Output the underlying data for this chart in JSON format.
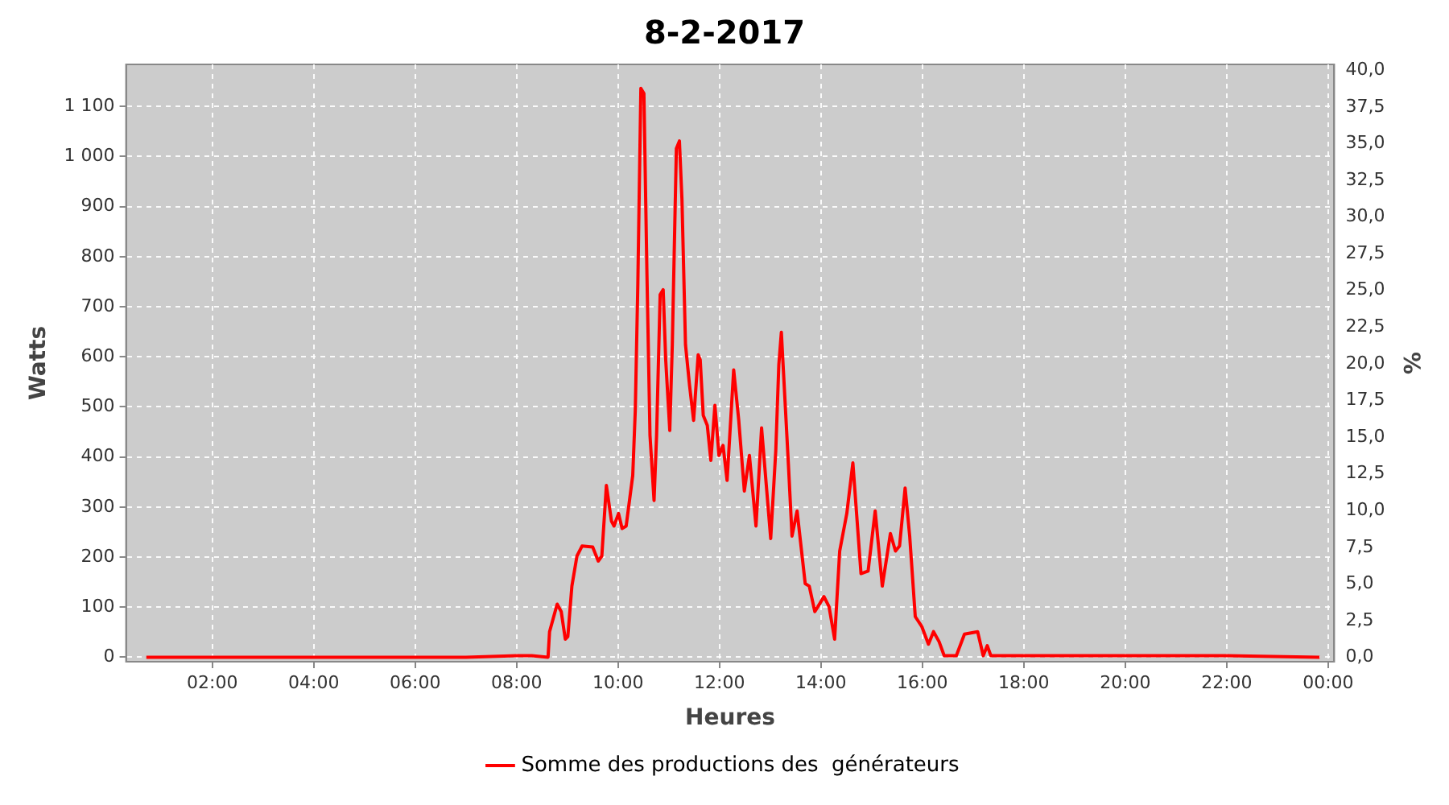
{
  "chart_data": {
    "type": "line",
    "title": "8-2-2017",
    "xlabel": "Heures",
    "ylabel": "Watts",
    "y2label": "%",
    "x": [
      0.7,
      2,
      4,
      6,
      7,
      8,
      8.3,
      8.62,
      8.65,
      8.8,
      8.88,
      8.96,
      9.01,
      9.09,
      9.19,
      9.29,
      9.5,
      9.61,
      9.68,
      9.77,
      9.87,
      9.92,
      10.01,
      10.08,
      10.16,
      10.29,
      10.34,
      10.39,
      10.45,
      10.51,
      10.57,
      10.63,
      10.71,
      10.76,
      10.83,
      10.89,
      10.94,
      11.02,
      11.07,
      11.15,
      11.21,
      11.26,
      11.33,
      11.41,
      11.49,
      11.58,
      11.62,
      11.68,
      11.76,
      11.83,
      11.91,
      11.99,
      12.07,
      12.15,
      12.28,
      12.38,
      12.49,
      12.59,
      12.72,
      12.83,
      13.01,
      13.11,
      13.17,
      13.22,
      13.36,
      13.43,
      13.53,
      13.69,
      13.77,
      13.88,
      14.06,
      14.16,
      14.27,
      14.37,
      14.51,
      14.63,
      14.79,
      14.93,
      15.07,
      15.21,
      15.37,
      15.47,
      15.55,
      15.66,
      15.75,
      15.86,
      15.99,
      16.12,
      16.22,
      16.33,
      16.43,
      16.67,
      16.83,
      17.09,
      17.2,
      17.28,
      17.35,
      18,
      20,
      22,
      23.83
    ],
    "series": [
      {
        "name": "Somme des productions des  générateurs",
        "color": "#ff0000",
        "values": [
          0,
          0,
          0,
          0,
          0,
          3,
          3,
          0,
          51,
          106,
          91,
          36,
          41,
          142,
          202,
          222,
          220,
          192,
          202,
          343,
          272,
          262,
          287,
          257,
          262,
          363,
          493,
          744,
          1136,
          1126,
          765,
          443,
          313,
          443,
          724,
          734,
          594,
          453,
          624,
          1016,
          1031,
          915,
          624,
          543,
          473,
          604,
          594,
          483,
          463,
          393,
          503,
          403,
          423,
          353,
          574,
          473,
          332,
          403,
          262,
          458,
          237,
          413,
          584,
          649,
          383,
          242,
          292,
          147,
          142,
          91,
          121,
          101,
          36,
          212,
          287,
          388,
          167,
          172,
          292,
          142,
          247,
          212,
          222,
          338,
          242,
          81,
          61,
          26,
          51,
          31,
          3,
          3,
          46,
          51,
          3,
          23,
          3,
          3,
          3,
          3,
          0
        ]
      }
    ],
    "xlim": [
      0.3,
      24.12
    ],
    "xticks": [
      {
        "value": 2,
        "label": "02:00"
      },
      {
        "value": 4,
        "label": "04:00"
      },
      {
        "value": 6,
        "label": "06:00"
      },
      {
        "value": 8,
        "label": "08:00"
      },
      {
        "value": 10,
        "label": "10:00"
      },
      {
        "value": 12,
        "label": "12:00"
      },
      {
        "value": 14,
        "label": "14:00"
      },
      {
        "value": 16,
        "label": "16:00"
      },
      {
        "value": 18,
        "label": "18:00"
      },
      {
        "value": 20,
        "label": "20:00"
      },
      {
        "value": 22,
        "label": "22:00"
      },
      {
        "value": 24,
        "label": "00:00"
      }
    ],
    "ylim": [
      -9,
      1184
    ],
    "yticks": [
      0,
      100,
      200,
      300,
      400,
      500,
      600,
      700,
      800,
      900,
      {
        "value": 1000,
        "label": "1 000"
      },
      {
        "value": 1100,
        "label": "1 100"
      }
    ],
    "y2lim": [
      -0.3,
      40.4
    ],
    "y2ticks": [
      {
        "value": 0,
        "label": "0,0"
      },
      {
        "value": 2.5,
        "label": "2,5"
      },
      {
        "value": 5,
        "label": "5,0"
      },
      {
        "value": 7.5,
        "label": "7,5"
      },
      {
        "value": 10,
        "label": "10,0"
      },
      {
        "value": 12.5,
        "label": "12,5"
      },
      {
        "value": 15,
        "label": "15,0"
      },
      {
        "value": 17.5,
        "label": "17,5"
      },
      {
        "value": 20,
        "label": "20,0"
      },
      {
        "value": 22.5,
        "label": "22,5"
      },
      {
        "value": 25,
        "label": "25,0"
      },
      {
        "value": 27.5,
        "label": "27,5"
      },
      {
        "value": 30,
        "label": "30,0"
      },
      {
        "value": 32.5,
        "label": "32,5"
      },
      {
        "value": 35,
        "label": "35,0"
      },
      {
        "value": 37.5,
        "label": "37,5"
      },
      {
        "value": 40,
        "label": "40,0"
      }
    ],
    "grid": true,
    "legend": "bottom",
    "marker": "none",
    "line_style": "solid"
  }
}
